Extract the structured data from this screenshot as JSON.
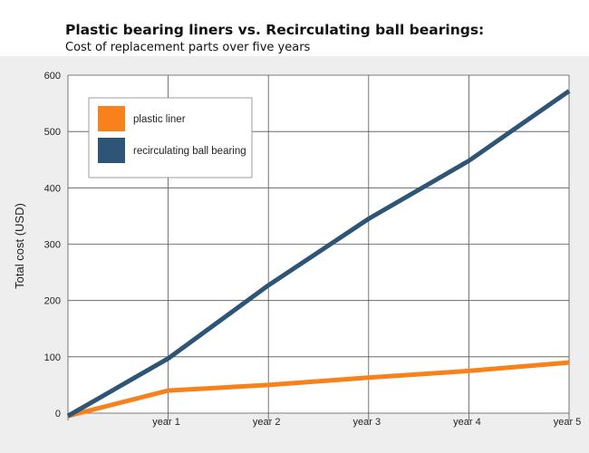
{
  "header": {
    "title": "Plastic bearing liners vs. Recirculating ball bearings:",
    "subtitle": "Cost of replacement parts over five years"
  },
  "colors": {
    "plot_background": "#ffffff",
    "outer_background": "#eeeeee",
    "grid": "#555555",
    "plastic_liner": "#f7821b",
    "recirculating_ball_bearing": "#2f5576"
  },
  "chart_data": {
    "type": "line",
    "title": "Plastic bearing liners vs. Recirculating ball bearings:",
    "subtitle": "Cost of replacement parts over five years",
    "xlabel": "",
    "ylabel": "Total cost (USD)",
    "x": [
      0,
      1,
      2,
      3,
      4,
      5
    ],
    "x_tick_labels": [
      "year 1",
      "year 2",
      "year 3",
      "year 4",
      "year 5"
    ],
    "y_ticks": [
      0,
      100,
      200,
      300,
      400,
      500,
      600
    ],
    "ylim": [
      0,
      600
    ],
    "grid": true,
    "legend_position": "top-left",
    "series": [
      {
        "name": "plastic liner",
        "color": "#f7821b",
        "values": [
          -5,
          40,
          50,
          63,
          75,
          90
        ]
      },
      {
        "name": "recirculating ball bearing",
        "color": "#2f5576",
        "values": [
          -5,
          97,
          227,
          345,
          448,
          572
        ]
      }
    ]
  }
}
